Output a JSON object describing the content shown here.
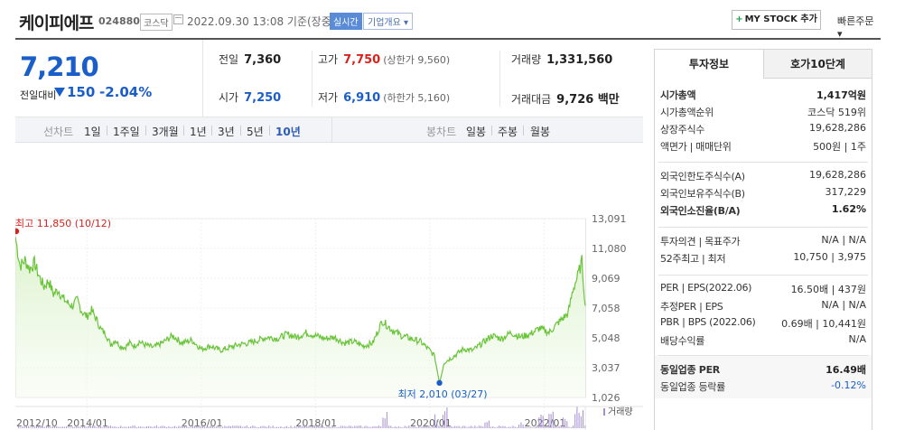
{
  "header": {
    "company": "케이피에프",
    "code": "024880",
    "market": "코스닥",
    "datetime": "2022.09.30 13:08 기준(장중)",
    "realtime": "실시간",
    "summary": "기업개요 ▾",
    "mystock": "MY STOCK 추가",
    "quick_order": "빠른주문 ▾"
  },
  "price": {
    "current": "7,210",
    "change_label": "전일대비",
    "change": "150",
    "change_pct": "-2.04%"
  },
  "stats": {
    "prev_label": "전일",
    "prev": "7,360",
    "high_label": "고가",
    "high": "7,750",
    "upper_limit": "(상한가 9,560)",
    "volume_label": "거래량",
    "volume": "1,331,560",
    "open_label": "시가",
    "open": "7,250",
    "low_label": "저가",
    "low": "6,910",
    "lower_limit": "(하한가 5,160)",
    "amount_label": "거래대금",
    "amount": "9,726 백만"
  },
  "tabs": {
    "line_label": "선차트",
    "periods": [
      "1일",
      "1주일",
      "3개월",
      "1년",
      "3년",
      "5년",
      "10년"
    ],
    "active_period": "10년",
    "candle_label": "봉차트",
    "candles": [
      "일봉",
      "주봉",
      "월봉"
    ]
  },
  "colors": {
    "accent_blue": "#1a5ec9",
    "up_red": "#d9221d",
    "line_green": "#6ac43a"
  },
  "chart_data": {
    "type": "area",
    "series_kind": "stock price (10 years)",
    "x_ticks": [
      "2012/10",
      "2014/01",
      "2016/01",
      "2018/01",
      "2020/01",
      "2022/01"
    ],
    "y_ticks": [
      "13,091",
      "11,080",
      "9,069",
      "7,058",
      "5,048",
      "3,037",
      "1,026"
    ],
    "ylim": [
      1026,
      13091
    ],
    "max_label": "최고 11,850 (10/12)",
    "min_label": "최저 2,010 (03/27)",
    "volume_label": "거래량",
    "points": [
      [
        "2012/10",
        11850
      ],
      [
        "2012/11",
        9900
      ],
      [
        "2012/12",
        10300
      ],
      [
        "2013/01",
        9700
      ],
      [
        "2013/02",
        10100
      ],
      [
        "2013/03",
        9200
      ],
      [
        "2013/04",
        8500
      ],
      [
        "2013/05",
        8900
      ],
      [
        "2013/06",
        8000
      ],
      [
        "2013/07",
        8300
      ],
      [
        "2013/08",
        7700
      ],
      [
        "2013/09",
        7400
      ],
      [
        "2013/10",
        7200
      ],
      [
        "2013/11",
        7600
      ],
      [
        "2013/12",
        6800
      ],
      [
        "2014/01",
        6500
      ],
      [
        "2014/02",
        6900
      ],
      [
        "2014/03",
        6300
      ],
      [
        "2014/04",
        5600
      ],
      [
        "2014/05",
        5300
      ],
      [
        "2014/06",
        4600
      ],
      [
        "2014/07",
        4900
      ],
      [
        "2014/08",
        4500
      ],
      [
        "2014/09",
        4400
      ],
      [
        "2014/10",
        4700
      ],
      [
        "2014/11",
        4500
      ],
      [
        "2014/12",
        4800
      ],
      [
        "2015/01",
        4600
      ],
      [
        "2015/03",
        4400
      ],
      [
        "2015/05",
        4750
      ],
      [
        "2015/07",
        5200
      ],
      [
        "2015/09",
        4700
      ],
      [
        "2015/11",
        4900
      ],
      [
        "2016/01",
        4300
      ],
      [
        "2016/03",
        4500
      ],
      [
        "2016/05",
        4200
      ],
      [
        "2016/07",
        4400
      ],
      [
        "2016/09",
        4600
      ],
      [
        "2016/11",
        4700
      ],
      [
        "2017/01",
        4900
      ],
      [
        "2017/03",
        5100
      ],
      [
        "2017/05",
        5000
      ],
      [
        "2017/07",
        5300
      ],
      [
        "2017/09",
        5100
      ],
      [
        "2017/11",
        5400
      ],
      [
        "2018/01",
        5200
      ],
      [
        "2018/03",
        5000
      ],
      [
        "2018/05",
        5100
      ],
      [
        "2018/07",
        4700
      ],
      [
        "2018/09",
        4800
      ],
      [
        "2018/11",
        4500
      ],
      [
        "2019/01",
        4700
      ],
      [
        "2019/03",
        6200
      ],
      [
        "2019/05",
        5600
      ],
      [
        "2019/07",
        5200
      ],
      [
        "2019/09",
        5000
      ],
      [
        "2019/11",
        4800
      ],
      [
        "2020/01",
        4200
      ],
      [
        "2020/02",
        3800
      ],
      [
        "2020/03",
        2010
      ],
      [
        "2020/04",
        3400
      ],
      [
        "2020/06",
        3800
      ],
      [
        "2020/08",
        4300
      ],
      [
        "2020/10",
        4200
      ],
      [
        "2020/12",
        4700
      ],
      [
        "2021/02",
        5200
      ],
      [
        "2021/04",
        5000
      ],
      [
        "2021/06",
        5400
      ],
      [
        "2021/08",
        5100
      ],
      [
        "2021/10",
        5300
      ],
      [
        "2021/12",
        5700
      ],
      [
        "2022/02",
        5400
      ],
      [
        "2022/04",
        6100
      ],
      [
        "2022/06",
        6700
      ],
      [
        "2022/07",
        8300
      ],
      [
        "2022/08",
        9200
      ],
      [
        "2022/09",
        10200
      ],
      [
        "2022/09",
        7210
      ]
    ]
  },
  "right_panel": {
    "tab_info": "투자정보",
    "tab_hoga": "호가10단계",
    "rows1": [
      {
        "k": "시가총액",
        "v": "1,417억원",
        "bold": true
      },
      {
        "k": "시가총액순위",
        "v": "코스닥 519위"
      },
      {
        "k": "상장주식수",
        "v": "19,628,286"
      },
      {
        "k": "액면가 | 매매단위",
        "v": "500원 | 1주"
      }
    ],
    "rows2": [
      {
        "k": "외국인한도주식수(A)",
        "v": "19,628,286"
      },
      {
        "k": "외국인보유주식수(B)",
        "v": "317,229"
      },
      {
        "k": "외국인소진율(B/A)",
        "v": "1.62%",
        "bold": true
      }
    ],
    "rows3": [
      {
        "k": "투자의견 | 목표주가",
        "v": "N/A | N/A"
      },
      {
        "k": "52주최고 | 최저",
        "v": "10,750 | 3,975"
      }
    ],
    "rows4": [
      {
        "k": "PER | EPS(2022.06)",
        "v": "16.50배 | 437원"
      },
      {
        "k": "추정PER | EPS",
        "v": "N/A | N/A"
      },
      {
        "k": "PBR | BPS (2022.06)",
        "v": "0.69배 | 10,441원"
      },
      {
        "k": "배당수익률",
        "v": "N/A"
      }
    ],
    "rows5": [
      {
        "k": "동일업종 PER",
        "v": "16.49배",
        "bold": true
      },
      {
        "k": "동일업종 등락률",
        "v": "-0.12%",
        "blue": true
      }
    ]
  }
}
